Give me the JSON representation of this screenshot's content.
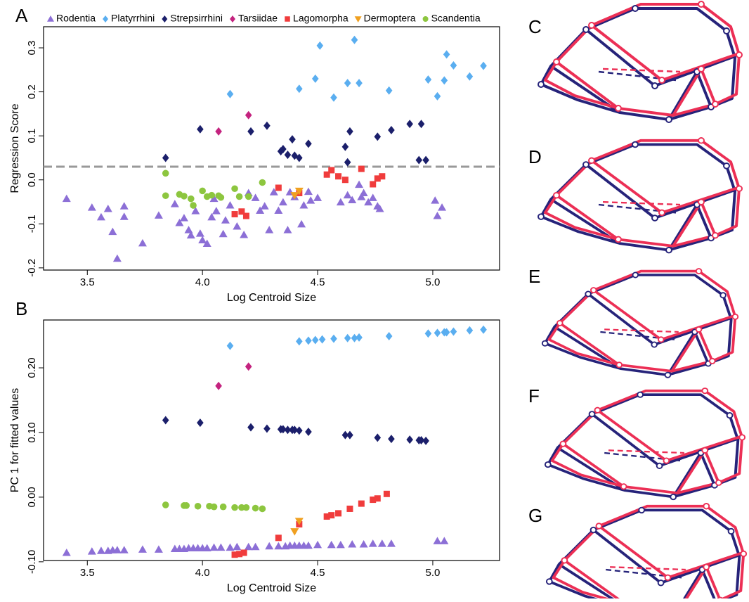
{
  "chart_data": [
    {
      "type": "scatter",
      "panel": "A",
      "xlabel": "Log Centroid Size",
      "ylabel": "Regression Score",
      "xlim": [
        3.31,
        5.29
      ],
      "ylim": [
        -0.205,
        0.348
      ],
      "xticks": [
        3.5,
        {
          "value": 4,
          "label": "4.0"
        },
        4.5,
        {
          "value": 5,
          "label": "5.0"
        }
      ],
      "yticks": [
        -0.2,
        -0.1,
        {
          "value": 0,
          "label": "0.0"
        },
        0.1,
        0.2,
        0.3
      ],
      "hline": 0.03,
      "hline_color": "#999999",
      "legend": "top",
      "series": [
        {
          "name": "Rodentia",
          "color": "#8c6fd6",
          "marker": "triangle",
          "x": [
            3.41,
            3.52,
            3.56,
            3.59,
            3.61,
            3.66,
            3.63,
            3.66,
            3.74,
            3.81,
            3.88,
            3.9,
            3.92,
            3.94,
            3.95,
            3.97,
            3.99,
            4.0,
            4.02,
            4.04,
            4.05,
            4.06,
            4.09,
            4.1,
            4.12,
            4.15,
            4.18,
            4.2,
            4.23,
            4.25,
            4.27,
            4.29,
            4.31,
            4.33,
            4.35,
            4.37,
            4.38,
            4.4,
            4.43,
            4.44,
            4.46,
            4.47,
            4.5,
            4.6,
            4.63,
            4.65,
            4.68,
            4.69,
            4.7,
            4.72,
            4.74,
            4.76,
            4.77,
            5.01,
            5.02,
            5.04
          ],
          "y": [
            -0.043,
            -0.063,
            -0.085,
            -0.066,
            -0.118,
            -0.084,
            -0.179,
            -0.06,
            -0.144,
            -0.081,
            -0.055,
            -0.098,
            -0.087,
            -0.114,
            -0.126,
            -0.071,
            -0.122,
            -0.137,
            -0.145,
            -0.085,
            -0.043,
            -0.071,
            -0.123,
            -0.092,
            -0.058,
            -0.106,
            -0.125,
            -0.03,
            -0.041,
            -0.07,
            -0.06,
            -0.114,
            -0.028,
            -0.07,
            -0.051,
            -0.114,
            -0.028,
            -0.039,
            -0.101,
            -0.058,
            -0.027,
            -0.047,
            -0.041,
            -0.051,
            -0.035,
            -0.046,
            -0.011,
            -0.039,
            -0.03,
            -0.051,
            -0.041,
            -0.06,
            -0.066,
            -0.047,
            -0.082,
            -0.063
          ]
        },
        {
          "name": "Platyrrhini",
          "color": "#5aaef0",
          "marker": "diamond",
          "x": [
            4.12,
            4.42,
            4.49,
            4.51,
            4.57,
            4.63,
            4.66,
            4.68,
            4.81,
            4.98,
            5.02,
            5.05,
            5.06,
            5.09,
            5.16,
            5.22
          ],
          "y": [
            0.195,
            0.207,
            0.23,
            0.305,
            0.187,
            0.22,
            0.318,
            0.22,
            0.203,
            0.228,
            0.19,
            0.226,
            0.285,
            0.26,
            0.235,
            0.259
          ]
        },
        {
          "name": "Strepsirrhini",
          "color": "#1b1f6b",
          "marker": "diamond",
          "x": [
            3.84,
            3.99,
            4.21,
            4.28,
            4.34,
            4.35,
            4.37,
            4.39,
            4.4,
            4.42,
            4.46,
            4.62,
            4.63,
            4.64,
            4.76,
            4.82,
            4.9,
            4.94,
            4.95,
            4.97
          ],
          "y": [
            0.05,
            0.115,
            0.11,
            0.123,
            0.065,
            0.07,
            0.057,
            0.092,
            0.055,
            0.05,
            0.082,
            0.075,
            0.04,
            0.11,
            0.098,
            0.113,
            0.127,
            0.045,
            0.127,
            0.045
          ]
        },
        {
          "name": "Tarsiidae",
          "color": "#c4237f",
          "marker": "diamond",
          "x": [
            4.07,
            4.2
          ],
          "y": [
            0.11,
            0.147
          ]
        },
        {
          "name": "Lagomorpha",
          "color": "#f03c3c",
          "marker": "square",
          "x": [
            4.14,
            4.17,
            4.19,
            4.33,
            4.42,
            4.54,
            4.56,
            4.59,
            4.62,
            4.69,
            4.74,
            4.76,
            4.78
          ],
          "y": [
            -0.078,
            -0.072,
            -0.082,
            -0.018,
            -0.03,
            0.012,
            0.022,
            0.008,
            0.0,
            0.025,
            -0.01,
            0.003,
            0.008
          ]
        },
        {
          "name": "Dermoptera",
          "color": "#f0a020",
          "marker": "triangle-down",
          "x": [
            4.4,
            4.42
          ],
          "y": [
            -0.035,
            -0.025
          ]
        },
        {
          "name": "Scandentia",
          "color": "#8dc63f",
          "marker": "circle",
          "x": [
            3.84,
            3.84,
            3.9,
            3.92,
            3.95,
            3.96,
            4.0,
            4.02,
            4.04,
            4.07,
            4.08,
            4.14,
            4.16,
            4.2,
            4.26
          ],
          "y": [
            0.015,
            -0.036,
            -0.033,
            -0.037,
            -0.043,
            -0.058,
            -0.025,
            -0.038,
            -0.035,
            -0.036,
            -0.04,
            -0.02,
            -0.038,
            -0.038,
            -0.006
          ]
        }
      ]
    },
    {
      "type": "scatter",
      "panel": "B",
      "xlabel": "Log Centroid Size",
      "ylabel": "PC 1 for fitted values",
      "xlim": [
        3.31,
        5.29
      ],
      "ylim": [
        -0.098,
        0.274
      ],
      "xticks": [
        3.5,
        {
          "value": 4,
          "label": "4.0"
        },
        4.5,
        {
          "value": 5,
          "label": "5.0"
        }
      ],
      "yticks": [
        {
          "value": -0.1,
          "label": "-0.10"
        },
        {
          "value": 0,
          "label": "0.00"
        },
        {
          "value": 0.1,
          "label": "0.10"
        },
        {
          "value": 0.2,
          "label": "0.20"
        }
      ],
      "series": [
        {
          "color": "#8c6fd6",
          "marker": "triangle",
          "x": [
            3.41,
            3.52,
            3.56,
            3.59,
            3.61,
            3.63,
            3.66,
            3.74,
            3.81,
            3.88,
            3.9,
            3.92,
            3.94,
            3.96,
            3.98,
            4.0,
            4.02,
            4.05,
            4.08,
            4.12,
            4.15,
            4.2,
            4.23,
            4.29,
            4.33,
            4.36,
            4.38,
            4.4,
            4.42,
            4.44,
            4.46,
            4.5,
            4.56,
            4.6,
            4.65,
            4.7,
            4.74,
            4.78,
            4.82,
            5.02,
            5.05
          ],
          "y": [
            -0.086,
            -0.084,
            -0.083,
            -0.083,
            -0.082,
            -0.082,
            -0.082,
            -0.081,
            -0.081,
            -0.08,
            -0.08,
            -0.08,
            -0.079,
            -0.079,
            -0.079,
            -0.079,
            -0.079,
            -0.078,
            -0.078,
            -0.078,
            -0.077,
            -0.077,
            -0.077,
            -0.076,
            -0.076,
            -0.076,
            -0.075,
            -0.075,
            -0.075,
            -0.075,
            -0.075,
            -0.074,
            -0.074,
            -0.074,
            -0.073,
            -0.073,
            -0.072,
            -0.072,
            -0.072,
            -0.068,
            -0.068
          ]
        },
        {
          "color": "#5aaef0",
          "marker": "diamond",
          "x": [
            4.12,
            4.42,
            4.46,
            4.49,
            4.52,
            4.57,
            4.63,
            4.66,
            4.68,
            4.81,
            4.98,
            5.02,
            5.05,
            5.06,
            5.09,
            5.16,
            5.22
          ],
          "y": [
            0.234,
            0.241,
            0.242,
            0.243,
            0.244,
            0.245,
            0.246,
            0.246,
            0.247,
            0.249,
            0.253,
            0.254,
            0.255,
            0.255,
            0.256,
            0.258,
            0.259
          ]
        },
        {
          "color": "#1b1f6b",
          "marker": "diamond",
          "x": [
            3.84,
            3.99,
            4.21,
            4.28,
            4.34,
            4.35,
            4.37,
            4.39,
            4.4,
            4.42,
            4.46,
            4.62,
            4.64,
            4.76,
            4.82,
            4.9,
            4.94,
            4.95,
            4.97
          ],
          "y": [
            0.119,
            0.115,
            0.108,
            0.106,
            0.105,
            0.105,
            0.104,
            0.104,
            0.104,
            0.103,
            0.101,
            0.096,
            0.096,
            0.092,
            0.09,
            0.089,
            0.088,
            0.088,
            0.087
          ]
        },
        {
          "color": "#c4237f",
          "marker": "diamond",
          "x": [
            4.07,
            4.2
          ],
          "y": [
            0.172,
            0.202
          ]
        },
        {
          "color": "#f03c3c",
          "marker": "square",
          "x": [
            4.14,
            4.16,
            4.18,
            4.33,
            4.42,
            4.54,
            4.56,
            4.59,
            4.64,
            4.69,
            4.74,
            4.76,
            4.8
          ],
          "y": [
            -0.089,
            -0.088,
            -0.086,
            -0.063,
            -0.042,
            -0.03,
            -0.028,
            -0.025,
            -0.018,
            -0.01,
            -0.004,
            -0.002,
            0.005
          ]
        },
        {
          "color": "#f0a020",
          "marker": "triangle-down",
          "x": [
            4.4,
            4.42
          ],
          "y": [
            -0.053,
            -0.037
          ]
        },
        {
          "color": "#8dc63f",
          "marker": "circle",
          "x": [
            3.84,
            3.92,
            3.93,
            3.98,
            4.03,
            4.05,
            4.09,
            4.14,
            4.17,
            4.19,
            4.23,
            4.26
          ],
          "y": [
            -0.012,
            -0.013,
            -0.013,
            -0.014,
            -0.014,
            -0.015,
            -0.015,
            -0.016,
            -0.016,
            -0.016,
            -0.017,
            -0.018
          ]
        }
      ]
    }
  ],
  "wireframes": [
    "C",
    "D",
    "E",
    "F",
    "G"
  ]
}
